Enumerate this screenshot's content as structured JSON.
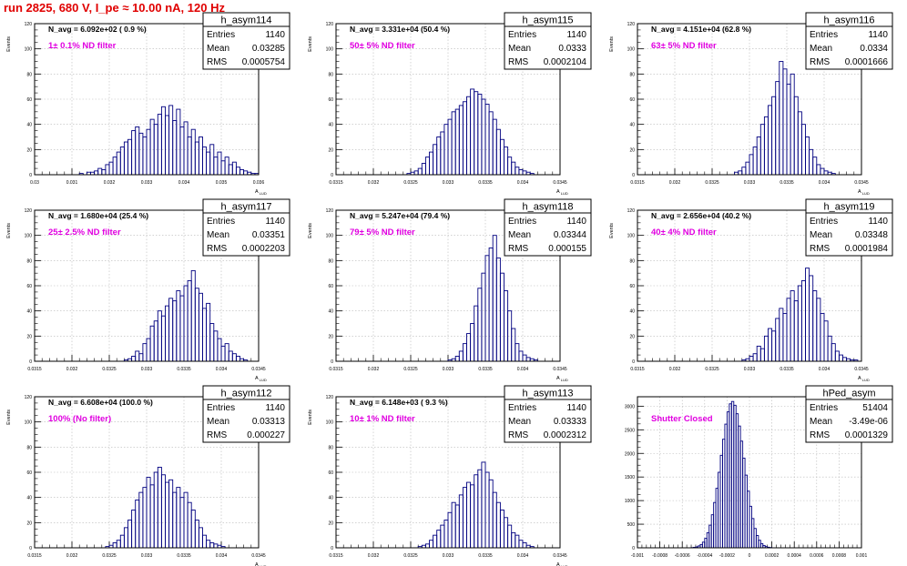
{
  "title": "run 2825,   680 V, I_pe ≈ 10.00 nA, 120 Hz",
  "colors": {
    "title": "#e00000",
    "filter_label": "#e000e0",
    "histogram_line": "#000080",
    "axes": "#000000",
    "grid": "#b8b8b8"
  },
  "chart_data": [
    {
      "type": "histogram",
      "name": "h_asym114",
      "stats": {
        "entries_label": "Entries",
        "entries": "1140",
        "mean_label": "Mean",
        "mean": "0.03285",
        "rms_label": "RMS",
        "rms": "0.0005754"
      },
      "navg_text": "N_avg = 6.092e+02 ( 0.9 %)",
      "filter_text": "1± 0.1% ND filter",
      "ylabel": "Events",
      "xlabel": "A",
      "xlim": [
        0.03,
        0.036
      ],
      "ylim": [
        0,
        120
      ],
      "x_ticks": [
        "0.03",
        "0.031",
        "0.032",
        "0.033",
        "0.034",
        "0.035",
        "0.036"
      ],
      "y_ticks": [
        "0",
        "20",
        "40",
        "60",
        "80",
        "100",
        "120"
      ],
      "grid": true,
      "bin_width": 0.0001,
      "bins_start": 0.0312,
      "counts": [
        1,
        0,
        2,
        2,
        3,
        5,
        4,
        8,
        10,
        14,
        18,
        22,
        26,
        28,
        35,
        38,
        33,
        30,
        36,
        44,
        40,
        48,
        54,
        47,
        55,
        43,
        52,
        38,
        42,
        30,
        36,
        26,
        30,
        22,
        18,
        24,
        14,
        18,
        11,
        14,
        8,
        10,
        6,
        4,
        3,
        2,
        1,
        1
      ]
    },
    {
      "type": "histogram",
      "name": "h_asym115",
      "stats": {
        "entries_label": "Entries",
        "entries": "1140",
        "mean_label": "Mean",
        "mean": "0.0333",
        "rms_label": "RMS",
        "rms": "0.0002104"
      },
      "navg_text": "N_avg = 3.331e+04 (50.4 %)",
      "filter_text": "50± 5% ND filter",
      "ylabel": "Events",
      "xlabel": "A",
      "xlim": [
        0.0315,
        0.0345
      ],
      "ylim": [
        0,
        120
      ],
      "x_ticks": [
        "0.0315",
        "0.032",
        "0.0325",
        "0.033",
        "0.0335",
        "0.034",
        "0.0345"
      ],
      "y_ticks": [
        "0",
        "20",
        "40",
        "60",
        "80",
        "100",
        "120"
      ],
      "grid": true,
      "bin_width": 5e-05,
      "bins_start": 0.03245,
      "counts": [
        1,
        2,
        3,
        5,
        9,
        14,
        18,
        24,
        30,
        34,
        40,
        44,
        50,
        52,
        55,
        58,
        62,
        68,
        66,
        64,
        60,
        56,
        50,
        44,
        36,
        28,
        22,
        14,
        10,
        6,
        4,
        3,
        2,
        1
      ]
    },
    {
      "type": "histogram",
      "name": "h_asym116",
      "stats": {
        "entries_label": "Entries",
        "entries": "1140",
        "mean_label": "Mean",
        "mean": "0.0334",
        "rms_label": "RMS",
        "rms": "0.0001666"
      },
      "navg_text": "N_avg = 4.151e+04 (62.8 %)",
      "filter_text": "63± 5% ND filter",
      "ylabel": "Events",
      "xlabel": "A",
      "xlim": [
        0.0315,
        0.0345
      ],
      "ylim": [
        0,
        120
      ],
      "x_ticks": [
        "0.0315",
        "0.032",
        "0.0325",
        "0.033",
        "0.0335",
        "0.034",
        "0.0345"
      ],
      "y_ticks": [
        "0",
        "20",
        "40",
        "60",
        "80",
        "100",
        "120"
      ],
      "grid": true,
      "bin_width": 5e-05,
      "bins_start": 0.0328,
      "counts": [
        2,
        3,
        6,
        10,
        16,
        22,
        30,
        40,
        46,
        55,
        62,
        74,
        90,
        84,
        72,
        80,
        62,
        50,
        40,
        30,
        20,
        14,
        8,
        5,
        3,
        2,
        1
      ]
    },
    {
      "type": "histogram",
      "name": "h_asym117",
      "stats": {
        "entries_label": "Entries",
        "entries": "1140",
        "mean_label": "Mean",
        "mean": "0.03351",
        "rms_label": "RMS",
        "rms": "0.0002203"
      },
      "navg_text": "N_avg = 1.680e+04 (25.4 %)",
      "filter_text": "25± 2.5% ND filter",
      "ylabel": "Events",
      "xlabel": "A",
      "xlim": [
        0.0315,
        0.0345
      ],
      "ylim": [
        0,
        120
      ],
      "x_ticks": [
        "0.0315",
        "0.032",
        "0.0325",
        "0.033",
        "0.0335",
        "0.034",
        "0.0345"
      ],
      "y_ticks": [
        "0",
        "20",
        "40",
        "60",
        "80",
        "100",
        "120"
      ],
      "grid": true,
      "bin_width": 5e-05,
      "bins_start": 0.0327,
      "counts": [
        1,
        2,
        4,
        8,
        6,
        14,
        18,
        28,
        32,
        40,
        36,
        44,
        50,
        48,
        56,
        52,
        60,
        64,
        72,
        58,
        54,
        42,
        46,
        30,
        24,
        18,
        12,
        14,
        8,
        6,
        4,
        2,
        1
      ]
    },
    {
      "type": "histogram",
      "name": "h_asym118",
      "stats": {
        "entries_label": "Entries",
        "entries": "1140",
        "mean_label": "Mean",
        "mean": "0.03344",
        "rms_label": "RMS",
        "rms": "0.000155"
      },
      "navg_text": "N_avg = 5.247e+04 (79.4 %)",
      "filter_text": "79± 5% ND filter",
      "ylabel": "Events",
      "xlabel": "A",
      "xlim": [
        0.0315,
        0.0345
      ],
      "ylim": [
        0,
        120
      ],
      "x_ticks": [
        "0.0315",
        "0.032",
        "0.0325",
        "0.033",
        "0.0335",
        "0.034",
        "0.0345"
      ],
      "y_ticks": [
        "0",
        "20",
        "40",
        "60",
        "80",
        "100",
        "120"
      ],
      "grid": true,
      "bin_width": 5e-05,
      "bins_start": 0.033,
      "counts": [
        1,
        2,
        4,
        8,
        14,
        22,
        30,
        44,
        58,
        70,
        84,
        90,
        100,
        82,
        70,
        56,
        40,
        26,
        14,
        8,
        5,
        3,
        2,
        1
      ]
    },
    {
      "type": "histogram",
      "name": "h_asym119",
      "stats": {
        "entries_label": "Entries",
        "entries": "1140",
        "mean_label": "Mean",
        "mean": "0.03348",
        "rms_label": "RMS",
        "rms": "0.0001984"
      },
      "navg_text": "N_avg = 2.656e+04 (40.2 %)",
      "filter_text": "40± 4% ND filter",
      "ylabel": "Events",
      "xlabel": "A",
      "xlim": [
        0.0315,
        0.0345
      ],
      "ylim": [
        0,
        120
      ],
      "x_ticks": [
        "0.0315",
        "0.032",
        "0.0325",
        "0.033",
        "0.0335",
        "0.034",
        "0.0345"
      ],
      "y_ticks": [
        "0",
        "20",
        "40",
        "60",
        "80",
        "100",
        "120"
      ],
      "grid": true,
      "bin_width": 5e-05,
      "bins_start": 0.0329,
      "counts": [
        1,
        2,
        4,
        6,
        12,
        10,
        20,
        26,
        24,
        34,
        42,
        38,
        50,
        56,
        48,
        60,
        64,
        74,
        68,
        56,
        50,
        38,
        32,
        20,
        14,
        8,
        5,
        3,
        2,
        1,
        1
      ]
    },
    {
      "type": "histogram",
      "name": "h_asym112",
      "stats": {
        "entries_label": "Entries",
        "entries": "1140",
        "mean_label": "Mean",
        "mean": "0.03313",
        "rms_label": "RMS",
        "rms": "0.000227"
      },
      "navg_text": "N_avg = 6.608e+04 (100.0 %)",
      "filter_text": "100% (No filter)",
      "ylabel": "Events",
      "xlabel": "A",
      "xlim": [
        0.0315,
        0.0345
      ],
      "ylim": [
        0,
        120
      ],
      "x_ticks": [
        "0.0315",
        "0.032",
        "0.0325",
        "0.033",
        "0.0335",
        "0.034",
        "0.0345"
      ],
      "y_ticks": [
        "0",
        "20",
        "40",
        "60",
        "80",
        "100",
        "120"
      ],
      "grid": true,
      "bin_width": 5e-05,
      "bins_start": 0.03245,
      "counts": [
        1,
        2,
        4,
        6,
        10,
        16,
        22,
        30,
        38,
        44,
        48,
        56,
        50,
        60,
        64,
        58,
        52,
        54,
        44,
        48,
        40,
        44,
        36,
        30,
        22,
        16,
        10,
        6,
        4,
        3,
        2,
        1
      ]
    },
    {
      "type": "histogram",
      "name": "h_asym113",
      "stats": {
        "entries_label": "Entries",
        "entries": "1140",
        "mean_label": "Mean",
        "mean": "0.03333",
        "rms_label": "RMS",
        "rms": "0.0002312"
      },
      "navg_text": "N_avg = 6.148e+03 ( 9.3 %)",
      "filter_text": "10± 1% ND filter",
      "ylabel": "Events",
      "xlabel": "A",
      "xlim": [
        0.0315,
        0.0345
      ],
      "ylim": [
        0,
        120
      ],
      "x_ticks": [
        "0.0315",
        "0.032",
        "0.0325",
        "0.033",
        "0.0335",
        "0.034",
        "0.0345"
      ],
      "y_ticks": [
        "0",
        "20",
        "40",
        "60",
        "80",
        "100",
        "120"
      ],
      "grid": true,
      "bin_width": 5e-05,
      "bins_start": 0.0326,
      "counts": [
        1,
        2,
        3,
        6,
        10,
        14,
        18,
        22,
        28,
        36,
        34,
        42,
        48,
        52,
        50,
        58,
        62,
        68,
        60,
        54,
        44,
        36,
        30,
        24,
        18,
        12,
        10,
        6,
        4,
        2,
        1
      ]
    },
    {
      "type": "histogram",
      "name": "hPed_asym",
      "stats": {
        "entries_label": "Entries",
        "entries": "51404",
        "mean_label": "Mean",
        "mean": "-3.49e-06",
        "rms_label": "RMS",
        "rms": "0.0001329"
      },
      "navg_text": "",
      "filter_text": "Shutter Closed",
      "ylabel": "",
      "xlabel": "",
      "xlim": [
        -0.001,
        0.001
      ],
      "ylim": [
        0,
        3200
      ],
      "x_ticks": [
        "-0.001",
        "-0.0008",
        "-0.0006",
        "-0.0004",
        "-0.0002",
        "0",
        "0.0002",
        "0.0004",
        "0.0006",
        "0.0008",
        "0.001"
      ],
      "y_ticks": [
        "0",
        "500",
        "1000",
        "1500",
        "2000",
        "2500",
        "3000"
      ],
      "grid": true,
      "bin_width": 2e-05,
      "bins_start": -0.00052,
      "counts": [
        5,
        10,
        20,
        40,
        70,
        120,
        200,
        320,
        480,
        700,
        960,
        1260,
        1600,
        1960,
        2300,
        2620,
        2880,
        3050,
        3100,
        3020,
        2840,
        2580,
        2260,
        1900,
        1540,
        1200,
        880,
        620,
        410,
        260,
        160,
        90,
        50,
        25,
        12,
        6
      ]
    }
  ]
}
